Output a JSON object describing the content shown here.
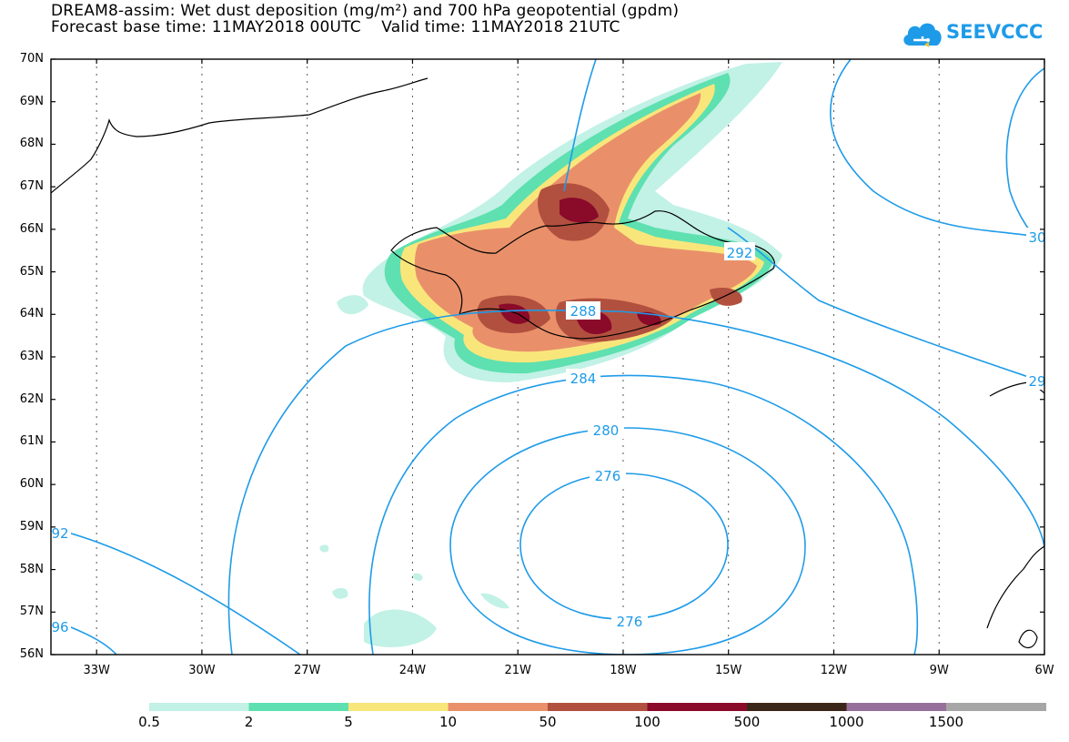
{
  "title": {
    "line1": "DREAM8-assim: Wet dust deposition (mg/m²) and 700 hPa geopotential (gpdm)",
    "line2": "Forecast base time: 11MAY2018 00UTC    Valid time: 11MAY2018 21UTC"
  },
  "logo": {
    "text": "SEEVCCC",
    "icon": "cloud-icon",
    "color": "#1e9be8"
  },
  "axes": {
    "lat_labels": [
      "70N",
      "69N",
      "68N",
      "67N",
      "66N",
      "65N",
      "64N",
      "63N",
      "62N",
      "61N",
      "60N",
      "59N",
      "58N",
      "57N",
      "56N"
    ],
    "lon_labels": [
      "33W",
      "30W",
      "27W",
      "24W",
      "21W",
      "18W",
      "15W",
      "12W",
      "9W",
      "6W"
    ],
    "lat_range": [
      56,
      70
    ],
    "lon_range": [
      -34.3,
      -6
    ],
    "grid": "dotted"
  },
  "contours": {
    "color": "#1e9be8",
    "labels": [
      "292",
      "288",
      "284",
      "280",
      "276",
      "276",
      "92",
      "96",
      "30",
      "29"
    ]
  },
  "colorbar": {
    "colors": [
      "#c2f1e6",
      "#5ee0b0",
      "#f9e67b",
      "#e9906a",
      "#b2503f",
      "#8a0a2a",
      "#3b271a",
      "#96709a",
      "#a6a6a6"
    ],
    "labels": [
      "0.5",
      "2",
      "5",
      "10",
      "50",
      "100",
      "500",
      "1000",
      "1500"
    ]
  }
}
